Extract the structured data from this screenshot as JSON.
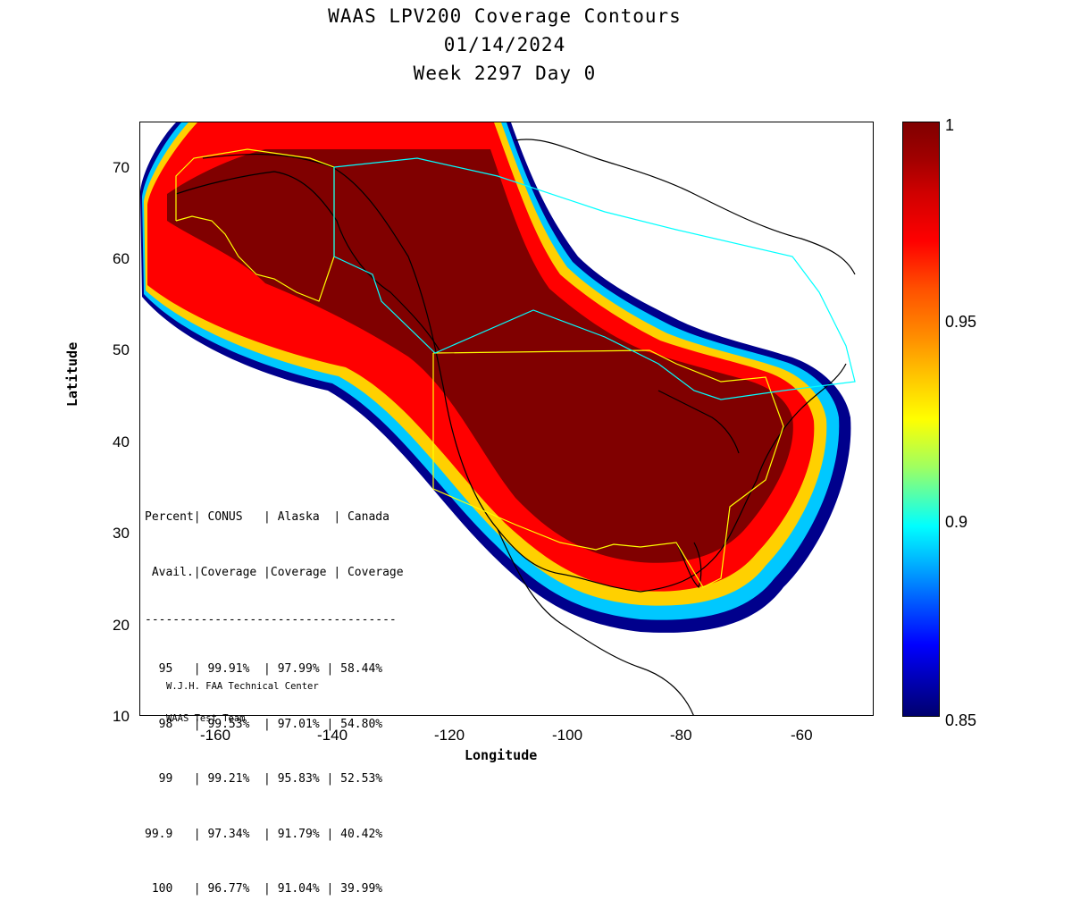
{
  "title": {
    "line1": "WAAS LPV200 Coverage Contours",
    "line2": "01/14/2024",
    "line3": "Week 2297 Day 0"
  },
  "axes": {
    "xlabel": "Longitude",
    "ylabel": "Latitude",
    "xticks": [
      "-160",
      "-140",
      "-120",
      "-100",
      "-80",
      "-60"
    ],
    "yticks": [
      "70",
      "60",
      "50",
      "40",
      "30",
      "20",
      "10"
    ],
    "xlim": [
      -175,
      -50
    ],
    "ylim": [
      10,
      75
    ]
  },
  "colorbar": {
    "ticks": [
      "1",
      "0.95",
      "0.9",
      "0.85"
    ],
    "range": [
      0.85,
      1
    ]
  },
  "stats": {
    "header1": "Percent| CONUS   | Alaska  | Canada",
    "header2": " Avail.|Coverage |Coverage | Coverage",
    "rule": "------------------------------------",
    "rows": [
      "  95   | 99.91%  | 97.99% | 58.44%",
      "  98   | 99.53%  | 97.01% | 54.80%",
      "  99   | 99.21%  | 95.83% | 52.53%",
      "99.9   | 97.34%  | 91.79% | 40.42%",
      " 100   | 96.77%  | 91.04% | 39.99%"
    ]
  },
  "credit": {
    "line1": "W.J.H. FAA Technical Center",
    "line2": "WAAS Test Team"
  },
  "colors": {
    "max_availability": "#800000",
    "service_boundary_us": "#ffff00",
    "service_boundary_canada": "#00ffff",
    "land_outline": "#000000"
  }
}
